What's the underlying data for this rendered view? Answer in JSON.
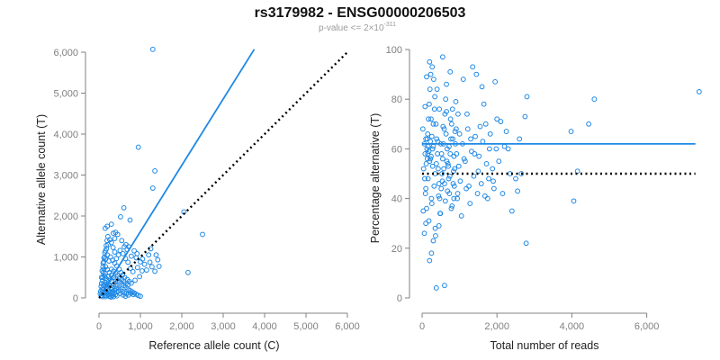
{
  "figure": {
    "title": "rs3179982 - ENSG00000206503",
    "subtitle_prefix": "p-value <= 2×10",
    "subtitle_exponent": "-311",
    "point_color": "#1E88E5",
    "fit_color": "#1E88E5",
    "ref_color": "#000000"
  },
  "chart_data": [
    {
      "type": "scatter",
      "name": "allele-counts",
      "xlabel": "Reference allele count (C)",
      "ylabel": "Alternative allele count (T)",
      "xlim": [
        0,
        6000
      ],
      "ylim": [
        0,
        6000
      ],
      "xticks": [
        0,
        1000,
        2000,
        3000,
        4000,
        5000,
        6000
      ],
      "yticks": [
        0,
        1000,
        2000,
        3000,
        4000,
        5000,
        6000
      ],
      "xtick_labels": [
        "0",
        "1,000",
        "2,000",
        "3,000",
        "4,000",
        "5,000",
        "6,000"
      ],
      "ytick_labels": [
        "0",
        "1,000",
        "2,000",
        "3,000",
        "4,000",
        "5,000",
        "6,000"
      ],
      "fit_line": {
        "x": [
          0,
          3750
        ],
        "y": [
          0,
          6070
        ]
      },
      "reference_line": {
        "x": [
          0,
          6000
        ],
        "y": [
          0,
          6000
        ]
      },
      "points": [
        [
          1300,
          6070
        ],
        [
          950,
          3680
        ],
        [
          1350,
          3100
        ],
        [
          1300,
          2680
        ],
        [
          2500,
          1550
        ],
        [
          2150,
          620
        ],
        [
          2050,
          2100
        ],
        [
          600,
          2200
        ],
        [
          520,
          1980
        ],
        [
          750,
          1900
        ],
        [
          300,
          1800
        ],
        [
          200,
          1750
        ],
        [
          150,
          1700
        ],
        [
          400,
          1600
        ],
        [
          450,
          1550
        ],
        [
          550,
          1400
        ],
        [
          650,
          1300
        ],
        [
          720,
          1250
        ],
        [
          850,
          1150
        ],
        [
          920,
          1080
        ],
        [
          1050,
          950
        ],
        [
          1200,
          1050
        ],
        [
          1250,
          1200
        ],
        [
          1380,
          1050
        ],
        [
          1420,
          930
        ],
        [
          1450,
          770
        ],
        [
          1150,
          680
        ],
        [
          980,
          520
        ],
        [
          870,
          430
        ],
        [
          820,
          640
        ],
        [
          760,
          720
        ],
        [
          700,
          870
        ],
        [
          640,
          960
        ],
        [
          580,
          1080
        ],
        [
          510,
          1160
        ],
        [
          470,
          1050
        ],
        [
          420,
          960
        ],
        [
          380,
          1120
        ],
        [
          340,
          1230
        ],
        [
          300,
          1350
        ],
        [
          260,
          1420
        ],
        [
          220,
          1300
        ],
        [
          180,
          1200
        ],
        [
          140,
          1100
        ],
        [
          120,
          980
        ],
        [
          100,
          850
        ],
        [
          160,
          760
        ],
        [
          200,
          690
        ],
        [
          250,
          620
        ],
        [
          300,
          560
        ],
        [
          350,
          500
        ],
        [
          400,
          460
        ],
        [
          450,
          420
        ],
        [
          500,
          380
        ],
        [
          550,
          330
        ],
        [
          600,
          300
        ],
        [
          650,
          260
        ],
        [
          700,
          220
        ],
        [
          750,
          180
        ],
        [
          800,
          150
        ],
        [
          850,
          120
        ],
        [
          900,
          90
        ],
        [
          950,
          60
        ],
        [
          1000,
          40
        ],
        [
          100,
          620
        ],
        [
          130,
          540
        ],
        [
          160,
          480
        ],
        [
          190,
          420
        ],
        [
          220,
          360
        ],
        [
          250,
          300
        ],
        [
          280,
          250
        ],
        [
          310,
          200
        ],
        [
          340,
          150
        ],
        [
          370,
          110
        ],
        [
          400,
          80
        ],
        [
          430,
          50
        ],
        [
          80,
          420
        ],
        [
          60,
          350
        ],
        [
          50,
          280
        ],
        [
          70,
          210
        ],
        [
          90,
          150
        ],
        [
          110,
          100
        ],
        [
          130,
          60
        ],
        [
          150,
          30
        ],
        [
          40,
          160
        ],
        [
          30,
          100
        ],
        [
          60,
          60
        ],
        [
          80,
          30
        ],
        [
          200,
          120
        ],
        [
          230,
          80
        ],
        [
          260,
          40
        ],
        [
          290,
          20
        ],
        [
          320,
          60
        ],
        [
          350,
          30
        ],
        [
          120,
          220
        ],
        [
          170,
          260
        ],
        [
          210,
          210
        ],
        [
          240,
          170
        ],
        [
          270,
          130
        ],
        [
          180,
          330
        ],
        [
          140,
          380
        ],
        [
          110,
          300
        ],
        [
          90,
          500
        ],
        [
          120,
          700
        ],
        [
          150,
          600
        ],
        [
          230,
          520
        ],
        [
          270,
          460
        ],
        [
          310,
          400
        ],
        [
          360,
          340
        ],
        [
          410,
          290
        ],
        [
          460,
          240
        ],
        [
          510,
          200
        ],
        [
          560,
          160
        ],
        [
          610,
          130
        ],
        [
          660,
          100
        ],
        [
          490,
          700
        ],
        [
          530,
          620
        ],
        [
          570,
          560
        ],
        [
          620,
          500
        ],
        [
          680,
          450
        ],
        [
          730,
          400
        ],
        [
          780,
          360
        ],
        [
          430,
          780
        ],
        [
          380,
          850
        ],
        [
          330,
          920
        ],
        [
          280,
          1000
        ],
        [
          240,
          900
        ],
        [
          200,
          1050
        ],
        [
          160,
          950
        ],
        [
          300,
          700
        ],
        [
          350,
          650
        ],
        [
          400,
          600
        ],
        [
          450,
          550
        ],
        [
          500,
          500
        ],
        [
          550,
          450
        ],
        [
          600,
          400
        ],
        [
          650,
          350
        ],
        [
          700,
          320
        ],
        [
          180,
          150
        ],
        [
          210,
          90
        ],
        [
          60,
          500
        ],
        [
          75,
          660
        ],
        [
          95,
          760
        ],
        [
          115,
          880
        ],
        [
          135,
          1000
        ],
        [
          155,
          1150
        ],
        [
          175,
          1280
        ],
        [
          195,
          1400
        ],
        [
          215,
          1500
        ],
        [
          345,
          1580
        ],
        [
          380,
          1450
        ],
        [
          610,
          1250
        ],
        [
          680,
          1180
        ],
        [
          780,
          1020
        ],
        [
          900,
          980
        ],
        [
          1000,
          880
        ],
        [
          1100,
          820
        ],
        [
          1230,
          870
        ],
        [
          1280,
          760
        ],
        [
          1350,
          650
        ],
        [
          930,
          740
        ],
        [
          1040,
          660
        ],
        [
          170,
          70
        ],
        [
          240,
          40
        ],
        [
          320,
          120
        ],
        [
          380,
          180
        ],
        [
          420,
          230
        ],
        [
          470,
          170
        ],
        [
          520,
          110
        ],
        [
          580,
          70
        ],
        [
          640,
          40
        ],
        [
          710,
          70
        ],
        [
          770,
          110
        ],
        [
          830,
          80
        ]
      ]
    },
    {
      "type": "scatter",
      "name": "percentage-alternative",
      "xlabel": "Total number of reads",
      "ylabel": "Percentage alternative (T)",
      "xlim": [
        0,
        7500
      ],
      "ylim": [
        0,
        100
      ],
      "xticks": [
        0,
        2000,
        4000,
        6000
      ],
      "yticks": [
        0,
        20,
        40,
        60,
        80,
        100
      ],
      "xtick_labels": [
        "0",
        "2,000",
        "4,000",
        "6,000"
      ],
      "ytick_labels": [
        "0",
        "20",
        "40",
        "60",
        "80",
        "100"
      ],
      "fit_line": {
        "x": [
          0,
          7300
        ],
        "y": [
          62,
          62
        ]
      },
      "reference_line": {
        "x": [
          0,
          7300
        ],
        "y": [
          50,
          50
        ]
      },
      "points": [
        [
          7400,
          83
        ],
        [
          4600,
          80
        ],
        [
          4450,
          70
        ],
        [
          3980,
          67
        ],
        [
          4050,
          39
        ],
        [
          4150,
          51
        ],
        [
          2800,
          81
        ],
        [
          2750,
          73
        ],
        [
          2780,
          22
        ],
        [
          2600,
          64
        ],
        [
          2650,
          50
        ],
        [
          2550,
          43
        ],
        [
          2500,
          48
        ],
        [
          2400,
          35
        ],
        [
          2300,
          60
        ],
        [
          2200,
          61
        ],
        [
          2100,
          71
        ],
        [
          2000,
          72
        ],
        [
          1950,
          87
        ],
        [
          1900,
          47
        ],
        [
          1800,
          60
        ],
        [
          1750,
          40
        ],
        [
          1700,
          70
        ],
        [
          1650,
          78
        ],
        [
          1600,
          85
        ],
        [
          1550,
          69
        ],
        [
          1500,
          51
        ],
        [
          1450,
          90
        ],
        [
          1400,
          58
        ],
        [
          1350,
          93
        ],
        [
          1300,
          64
        ],
        [
          1250,
          45
        ],
        [
          1200,
          74
        ],
        [
          1150,
          55
        ],
        [
          1100,
          88
        ],
        [
          1050,
          33
        ],
        [
          1000,
          66
        ],
        [
          950,
          42
        ],
        [
          900,
          79
        ],
        [
          850,
          57
        ],
        [
          800,
          37
        ],
        [
          750,
          91
        ],
        [
          700,
          53
        ],
        [
          650,
          75
        ],
        [
          600,
          46
        ],
        [
          550,
          97
        ],
        [
          500,
          62
        ],
        [
          450,
          29
        ],
        [
          400,
          84
        ],
        [
          350,
          50
        ],
        [
          300,
          70
        ],
        [
          250,
          40
        ],
        [
          200,
          95
        ],
        [
          150,
          58
        ],
        [
          100,
          44
        ],
        [
          80,
          77
        ],
        [
          60,
          26
        ],
        [
          40,
          52
        ],
        [
          20,
          68
        ],
        [
          30,
          35
        ],
        [
          120,
          89
        ],
        [
          140,
          64
        ],
        [
          160,
          48
        ],
        [
          180,
          31
        ],
        [
          220,
          56
        ],
        [
          240,
          72
        ],
        [
          260,
          38
        ],
        [
          280,
          60
        ],
        [
          320,
          45
        ],
        [
          340,
          81
        ],
        [
          360,
          25
        ],
        [
          380,
          54
        ],
        [
          420,
          63
        ],
        [
          440,
          41
        ],
        [
          460,
          76
        ],
        [
          480,
          34
        ],
        [
          520,
          58
        ],
        [
          540,
          47
        ],
        [
          560,
          69
        ],
        [
          580,
          52
        ],
        [
          620,
          39
        ],
        [
          640,
          66
        ],
        [
          660,
          55
        ],
        [
          680,
          43
        ],
        [
          720,
          61
        ],
        [
          740,
          49
        ],
        [
          760,
          72
        ],
        [
          780,
          36
        ],
        [
          820,
          64
        ],
        [
          840,
          51
        ],
        [
          860,
          45
        ],
        [
          880,
          67
        ],
        [
          920,
          58
        ],
        [
          940,
          40
        ],
        [
          960,
          74
        ],
        [
          980,
          53
        ],
        [
          1020,
          47
        ],
        [
          1080,
          62
        ],
        [
          1120,
          56
        ],
        [
          1180,
          44
        ],
        [
          1220,
          68
        ],
        [
          1280,
          38
        ],
        [
          1320,
          59
        ],
        [
          1380,
          49
        ],
        [
          1420,
          65
        ],
        [
          1480,
          42
        ],
        [
          1520,
          57
        ],
        [
          1580,
          46
        ],
        [
          1620,
          63
        ],
        [
          1680,
          41
        ],
        [
          1720,
          54
        ],
        [
          1780,
          48
        ],
        [
          1820,
          66
        ],
        [
          1880,
          52
        ],
        [
          1920,
          44
        ],
        [
          1980,
          60
        ],
        [
          2050,
          55
        ],
        [
          2150,
          42
        ],
        [
          2250,
          67
        ],
        [
          2350,
          50
        ],
        [
          380,
          4
        ],
        [
          600,
          5
        ],
        [
          200,
          15
        ],
        [
          250,
          18
        ],
        [
          300,
          23
        ],
        [
          350,
          28
        ],
        [
          100,
          30
        ],
        [
          120,
          36
        ],
        [
          90,
          42
        ],
        [
          70,
          48
        ],
        [
          110,
          54
        ],
        [
          130,
          60
        ],
        [
          150,
          66
        ],
        [
          170,
          72
        ],
        [
          190,
          78
        ],
        [
          210,
          84
        ],
        [
          230,
          90
        ],
        [
          270,
          93
        ],
        [
          310,
          88
        ],
        [
          330,
          76
        ],
        [
          370,
          70
        ],
        [
          390,
          64
        ],
        [
          410,
          58
        ],
        [
          430,
          52
        ],
        [
          450,
          46
        ],
        [
          470,
          40
        ],
        [
          490,
          34
        ],
        [
          510,
          44
        ],
        [
          530,
          50
        ],
        [
          550,
          56
        ],
        [
          570,
          62
        ],
        [
          590,
          68
        ],
        [
          610,
          74
        ],
        [
          630,
          80
        ],
        [
          650,
          86
        ],
        [
          670,
          60
        ],
        [
          690,
          54
        ],
        [
          710,
          48
        ],
        [
          730,
          42
        ],
        [
          750,
          58
        ],
        [
          770,
          64
        ],
        [
          790,
          70
        ],
        [
          810,
          76
        ],
        [
          830,
          46
        ],
        [
          850,
          40
        ],
        [
          870,
          52
        ],
        [
          890,
          62
        ],
        [
          910,
          68
        ],
        [
          60,
          62
        ],
        [
          80,
          58
        ],
        [
          100,
          64
        ],
        [
          140,
          56
        ],
        [
          160,
          61
        ],
        [
          180,
          59
        ],
        [
          200,
          55
        ],
        [
          220,
          63
        ],
        [
          240,
          57
        ],
        [
          260,
          65
        ],
        [
          280,
          53
        ],
        [
          300,
          61
        ]
      ]
    }
  ]
}
